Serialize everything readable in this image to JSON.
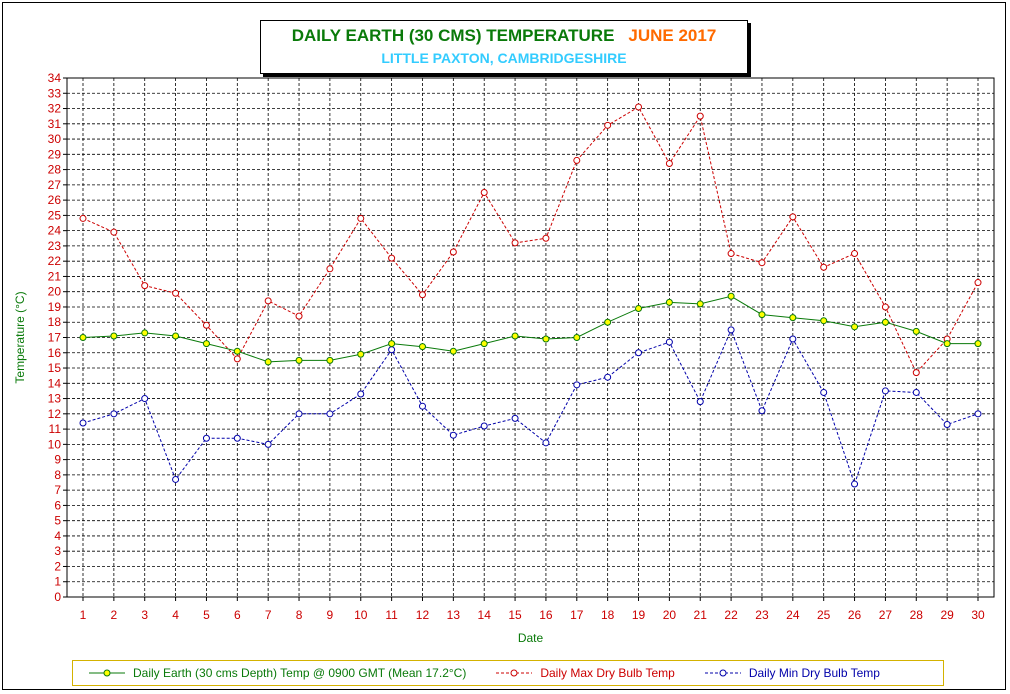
{
  "chart_data": {
    "type": "line",
    "title": "DAILY EARTH (30 CMS) TEMPERATURE",
    "title_month": "JUNE 2017",
    "subtitle": "LITTLE PAXTON, CAMBRIDGESHIRE",
    "xlabel": "Date",
    "ylabel": "Temperature (°C)",
    "x": [
      1,
      2,
      3,
      4,
      5,
      6,
      7,
      8,
      9,
      10,
      11,
      12,
      13,
      14,
      15,
      16,
      17,
      18,
      19,
      20,
      21,
      22,
      23,
      24,
      25,
      26,
      27,
      28,
      29,
      30
    ],
    "ylim": [
      0,
      34
    ],
    "ytick_step": 1,
    "grid": true,
    "legend_position": "bottom",
    "series": [
      {
        "name": "Daily Earth (30 cms Depth) Temp @ 0900 GMT (Mean 17.2°C)",
        "color": "#0a7a0a",
        "marker_fill": "#ffff00",
        "style": "solid",
        "values": [
          17.0,
          17.1,
          17.3,
          17.1,
          16.6,
          16.1,
          15.4,
          15.5,
          15.5,
          15.9,
          16.6,
          16.4,
          16.1,
          16.6,
          17.1,
          16.9,
          17.0,
          18.0,
          18.9,
          19.3,
          19.2,
          19.7,
          18.5,
          18.3,
          18.1,
          17.7,
          18.0,
          17.4,
          16.6,
          16.6
        ]
      },
      {
        "name": "Daily Max Dry Bulb Temp",
        "color": "#cc0000",
        "marker_fill": "#ffffff",
        "style": "dashed",
        "values": [
          24.8,
          23.9,
          20.4,
          19.9,
          17.8,
          15.6,
          19.4,
          18.4,
          21.5,
          24.8,
          22.2,
          19.8,
          22.6,
          26.5,
          23.2,
          23.5,
          28.6,
          30.9,
          32.1,
          28.4,
          31.5,
          22.5,
          21.9,
          24.9,
          21.6,
          22.5,
          19.0,
          14.7,
          16.9,
          20.6
        ]
      },
      {
        "name": "Daily Min Dry Bulb Temp",
        "color": "#0000aa",
        "marker_fill": "#ffffff",
        "style": "dashed",
        "values": [
          11.4,
          12.0,
          13.0,
          7.7,
          10.4,
          10.4,
          10.0,
          12.0,
          12.0,
          13.3,
          16.2,
          12.5,
          10.6,
          11.2,
          11.7,
          10.1,
          13.9,
          14.4,
          16.0,
          16.7,
          12.8,
          17.5,
          12.2,
          16.9,
          13.4,
          7.4,
          13.5,
          13.4,
          11.3,
          12.0
        ]
      }
    ]
  }
}
